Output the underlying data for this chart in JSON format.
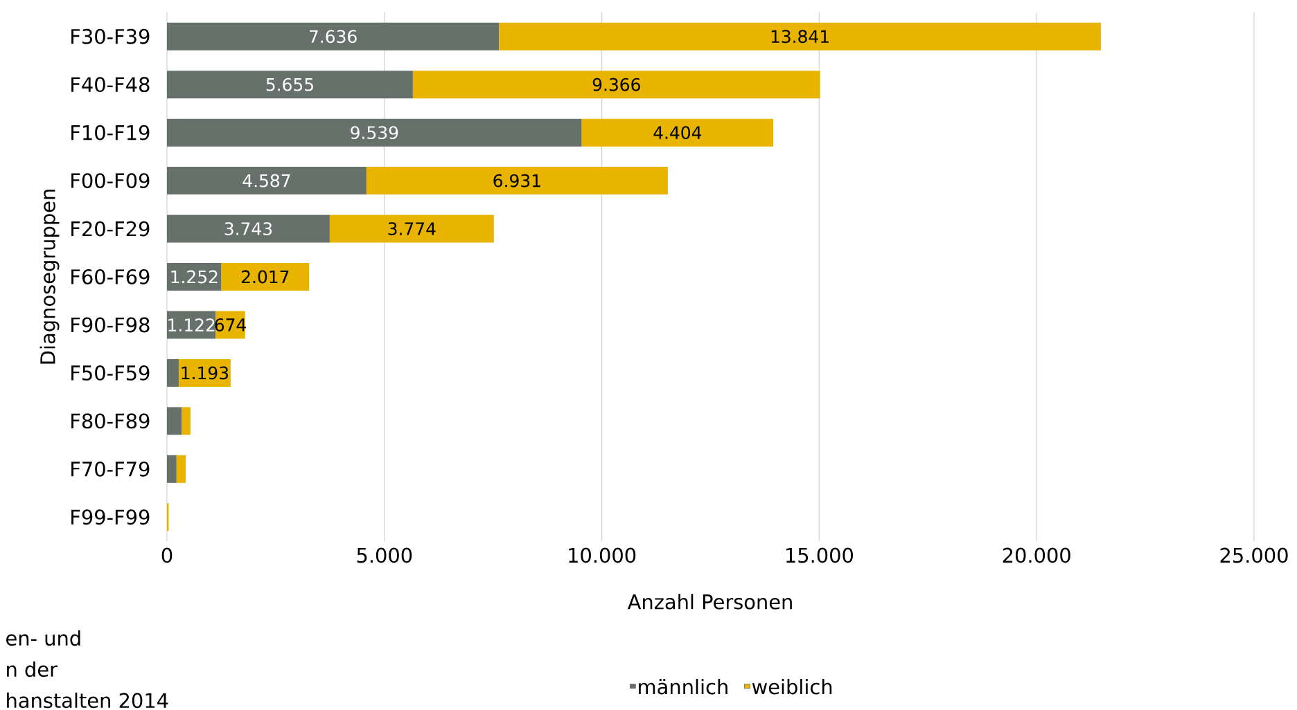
{
  "chart_data": {
    "type": "bar",
    "orientation": "horizontal",
    "stacked": true,
    "categories": [
      "F30-F39",
      "F40-F48",
      "F10-F19",
      "F00-F09",
      "F20-F29",
      "F60-F69",
      "F90-F98",
      "F50-F59",
      "F80-F89",
      "F70-F79",
      "F99-F99"
    ],
    "series": [
      {
        "name": "männlich",
        "color": "#67716b",
        "values": [
          7636,
          5655,
          9539,
          4587,
          3743,
          1252,
          1122,
          270,
          340,
          220,
          0
        ],
        "value_labels": [
          "7.636",
          "5.655",
          "9.539",
          "4.587",
          "3.743",
          "1.252",
          "1.122",
          null,
          null,
          null,
          null
        ]
      },
      {
        "name": "weiblich",
        "color": "#e8b400",
        "values": [
          13841,
          9366,
          4404,
          6931,
          3774,
          2017,
          674,
          1193,
          200,
          210,
          40
        ],
        "value_labels": [
          "13.841",
          "9.366",
          "4.404",
          "6.931",
          "3.774",
          "2.017",
          "674",
          "1.193",
          null,
          null,
          null
        ]
      }
    ],
    "xlim": [
      0,
      25000
    ],
    "xticks": [
      {
        "value": 0,
        "label": "0"
      },
      {
        "value": 5000,
        "label": "5.000"
      },
      {
        "value": 10000,
        "label": "10.000"
      },
      {
        "value": 15000,
        "label": "15.000"
      },
      {
        "value": 20000,
        "label": "20.000"
      },
      {
        "value": 25000,
        "label": "25.000"
      }
    ],
    "xlabel": "Anzahl Personen",
    "ylabel": "Diagnosegruppen",
    "grid": "x",
    "legend": "bottom",
    "annotations": [
      "en- und",
      "n der",
      "hanstalten 2014"
    ]
  }
}
